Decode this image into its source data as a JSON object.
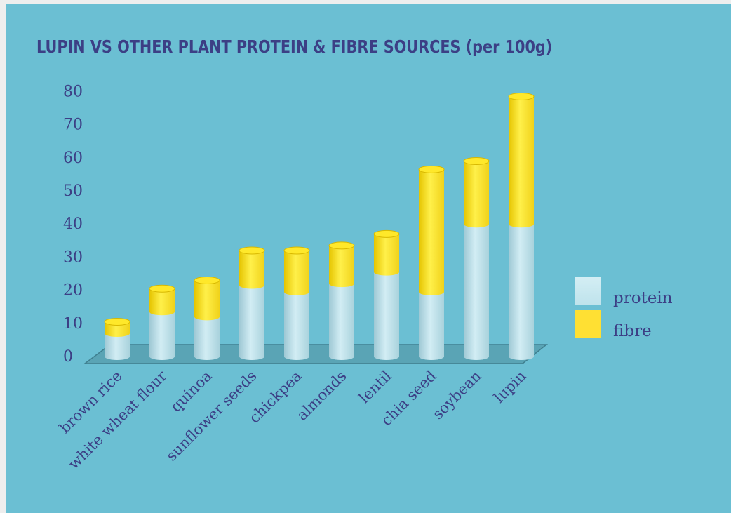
{
  "chart_data": {
    "type": "bar",
    "stacked": true,
    "title": "LUPIN VS OTHER PLANT PROTEIN & FIBRE SOURCES  (per 100g)",
    "xlabel": "",
    "ylabel": "",
    "ylim": [
      0,
      80
    ],
    "yticks": [
      0,
      10,
      20,
      30,
      40,
      50,
      60,
      70,
      80
    ],
    "grid": false,
    "legend_position": "right",
    "categories": [
      "brown rice",
      "white wheat flour",
      "quinoa",
      "sunflower seeds",
      "chickpea",
      "almonds",
      "lentil",
      "chia seed",
      "soybean",
      "lupin"
    ],
    "series": [
      {
        "name": "protein",
        "color": "#c6e6ee",
        "values": [
          7,
          13.5,
          12,
          21.5,
          19.5,
          22,
          25.5,
          19.5,
          40,
          40
        ]
      },
      {
        "name": "fibre",
        "color": "#ffe033",
        "values": [
          3.5,
          7,
          11,
          10.5,
          12.5,
          11.5,
          11.5,
          37,
          19,
          38.5
        ]
      }
    ]
  }
}
